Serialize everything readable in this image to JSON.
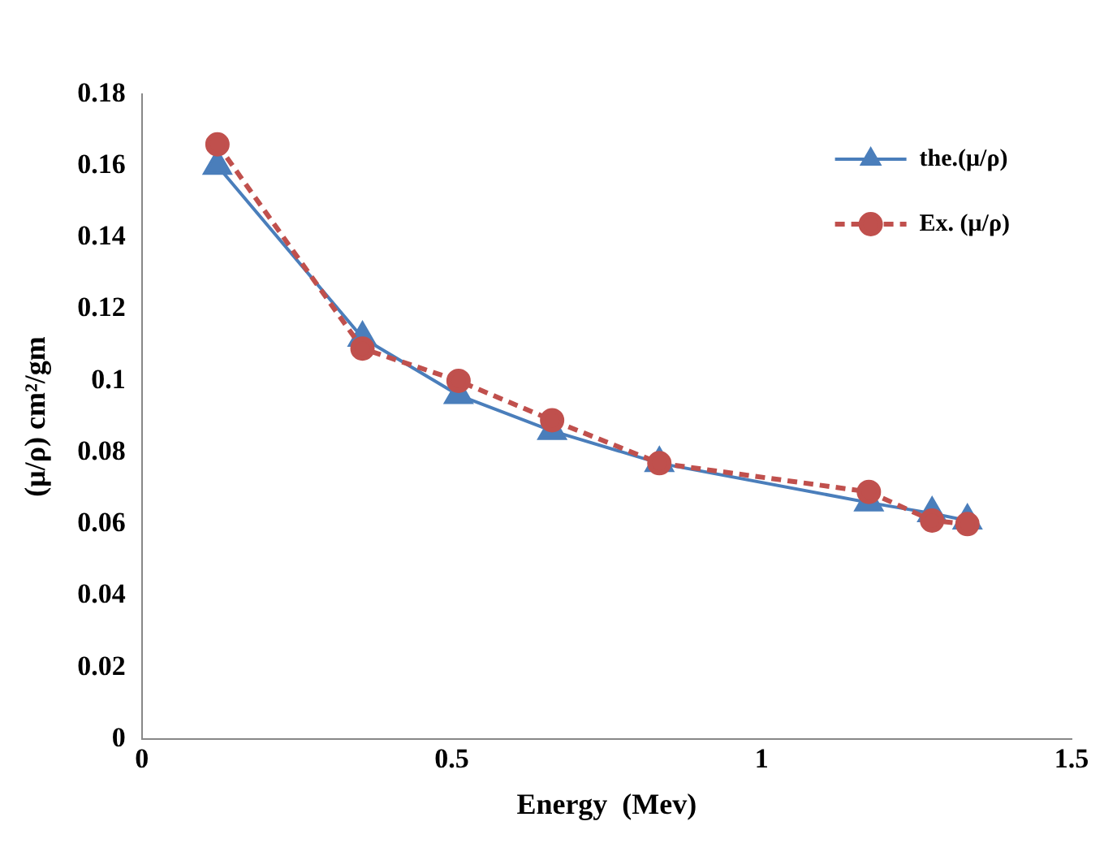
{
  "chart_data": {
    "type": "line",
    "xlabel": "Energy  (Mev)",
    "ylabel": "(μ/ρ) cm²/gm",
    "xlim": [
      0,
      1.5
    ],
    "xticks": [
      0,
      0.5,
      1,
      1.5
    ],
    "ylim": [
      0,
      0.18
    ],
    "yticks": [
      0,
      0.02,
      0.04,
      0.06,
      0.08,
      0.1,
      0.12,
      0.14,
      0.16,
      0.18
    ],
    "grid": false,
    "legend": "top right",
    "series": [
      {
        "name": "the.(μ/ρ)",
        "color": "#4a7ebb",
        "marker": "triangle",
        "line_style": "solid",
        "x": [
          0.122,
          0.356,
          0.511,
          0.662,
          0.835,
          1.173,
          1.275,
          1.332
        ],
        "values": [
          0.16,
          0.112,
          0.096,
          0.086,
          0.077,
          0.066,
          0.063,
          0.061
        ]
      },
      {
        "name": "Ex. (μ/ρ)",
        "color": "#c0504d",
        "marker": "circle",
        "line_style": "dashed",
        "x": [
          0.122,
          0.356,
          0.511,
          0.662,
          0.835,
          1.173,
          1.275,
          1.332
        ],
        "values": [
          0.166,
          0.109,
          0.1,
          0.089,
          0.077,
          0.069,
          0.061,
          0.06
        ]
      }
    ]
  }
}
